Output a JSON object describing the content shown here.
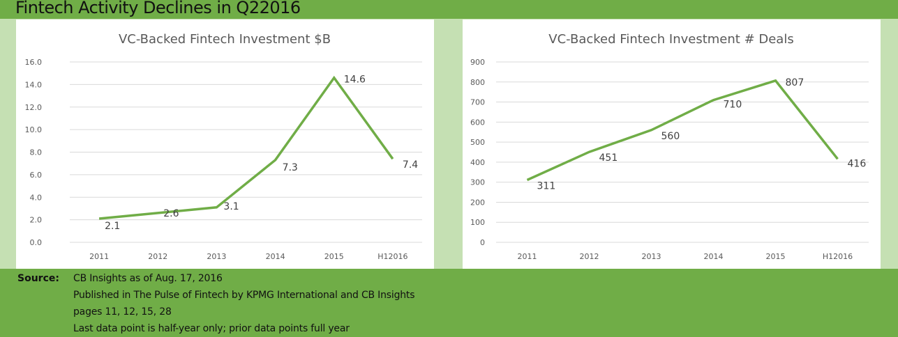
{
  "header": {
    "title": "Fintech Activity Declines in Q22016"
  },
  "colors": {
    "line": "#70ad47",
    "band": "#70ad47",
    "background": "#c5e0b3",
    "grid": "#d9d9d9"
  },
  "chart_data": [
    {
      "type": "line",
      "title": "VC-Backed Fintech Investment $B",
      "categories": [
        "2011",
        "2012",
        "2013",
        "2014",
        "2015",
        "H12016"
      ],
      "series": [
        {
          "name": "Investment $B",
          "values": [
            2.1,
            2.6,
            3.1,
            7.3,
            14.6,
            7.4
          ]
        }
      ],
      "data_labels": [
        "2.1",
        "2.6",
        "3.1",
        "7.3",
        "14.6",
        "7.4"
      ],
      "yticks": [
        "0.0",
        "2.0",
        "4.0",
        "6.0",
        "8.0",
        "10.0",
        "12.0",
        "14.0",
        "16.0"
      ],
      "ylim": [
        0,
        16
      ],
      "ystep": 2,
      "xlabel": "",
      "ylabel": "",
      "grid": true,
      "legend": "none"
    },
    {
      "type": "line",
      "title": "VC-Backed Fintech Investment # Deals",
      "categories": [
        "2011",
        "2012",
        "2013",
        "2014",
        "2015",
        "H12016"
      ],
      "series": [
        {
          "name": "# Deals",
          "values": [
            311,
            451,
            560,
            710,
            807,
            416
          ]
        }
      ],
      "data_labels": [
        "311",
        "451",
        "560",
        "710",
        "807",
        "416"
      ],
      "yticks": [
        "0",
        "100",
        "200",
        "300",
        "400",
        "500",
        "600",
        "700",
        "800",
        "900"
      ],
      "ylim": [
        0,
        900
      ],
      "ystep": 100,
      "xlabel": "",
      "ylabel": "",
      "grid": true,
      "legend": "none"
    }
  ],
  "source": {
    "label": "Source:",
    "lines": [
      "CB Insights as of Aug. 17, 2016",
      "Published in The Pulse of Fintech by KPMG International and CB Insights",
      "pages 11, 12, 15, 28",
      "Last data point is half-year only; prior data points full year"
    ]
  }
}
